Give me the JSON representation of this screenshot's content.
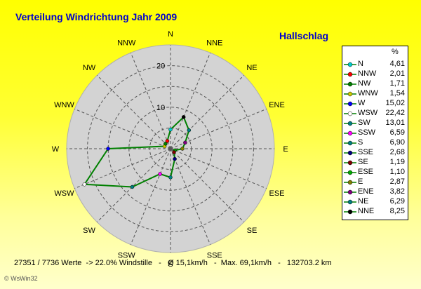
{
  "title": "Verteilung Windrichtung   Jahr 2009",
  "station": "Hallschlag",
  "footer": "27351 / 7736 Werte  -> 22.0% Windstille   -   Ø 15,1km/h   -  Max. 69,1km/h   -   132703.2 km",
  "credit": "© WsWin32",
  "legend_header": "%",
  "chart_data": {
    "type": "radar",
    "rlim": [
      0,
      25
    ],
    "ring_labels": [
      "10",
      "20"
    ],
    "ring_values": [
      10,
      20
    ],
    "grid": true,
    "legend_position": "right",
    "line_color": "#008000",
    "disc_color": "#d3d3d3",
    "directions": [
      "N",
      "NNE",
      "NE",
      "ENE",
      "E",
      "ESE",
      "SE",
      "SSE",
      "S",
      "SSW",
      "SW",
      "WSW",
      "W",
      "WNW",
      "NW",
      "NNW"
    ],
    "values": [
      4.61,
      8.25,
      6.29,
      3.82,
      2.87,
      1.1,
      1.19,
      2.68,
      6.9,
      6.59,
      13.01,
      22.42,
      15.02,
      1.54,
      1.71,
      2.01
    ],
    "colors": [
      "#00cccc",
      "#000000",
      "#008080",
      "#800080",
      "#808000",
      "#00aa00",
      "#800000",
      "#000080",
      "#008080",
      "#ff00ff",
      "#008080",
      "#ffffff",
      "#0000ff",
      "#cccc00",
      "#008000",
      "#ff0000"
    ],
    "legend": [
      {
        "name": "N",
        "value": "4,61"
      },
      {
        "name": "NNW",
        "value": "2,01"
      },
      {
        "name": "NW",
        "value": "1,71"
      },
      {
        "name": "WNW",
        "value": "1,54"
      },
      {
        "name": "W",
        "value": "15,02"
      },
      {
        "name": "WSW",
        "value": "22,42"
      },
      {
        "name": "SW",
        "value": "13,01"
      },
      {
        "name": "SSW",
        "value": "6,59"
      },
      {
        "name": "S",
        "value": "6,90"
      },
      {
        "name": "SSE",
        "value": "2,68"
      },
      {
        "name": "SE",
        "value": "1,19"
      },
      {
        "name": "ESE",
        "value": "1,10"
      },
      {
        "name": "E",
        "value": "2,87"
      },
      {
        "name": "ENE",
        "value": "3,82"
      },
      {
        "name": "NE",
        "value": "6,29"
      },
      {
        "name": "NNE",
        "value": "8,25"
      }
    ]
  }
}
